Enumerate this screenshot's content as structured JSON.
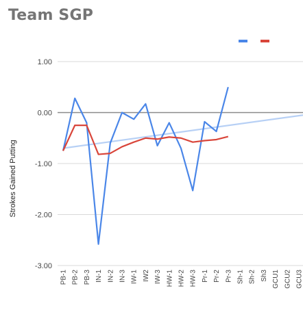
{
  "title": "Team SGP",
  "chart_data": {
    "type": "line",
    "title": "Team SGP",
    "xlabel": "",
    "ylabel": "Strokes Gained Putting",
    "ylim": [
      -3,
      1
    ],
    "yticks": [
      {
        "value": 1,
        "label": "1.00"
      },
      {
        "value": 0,
        "label": "0.00"
      },
      {
        "value": -1,
        "label": "-1.00"
      },
      {
        "value": -2,
        "label": "-2.00"
      },
      {
        "value": -3,
        "label": "-3.00"
      }
    ],
    "grid": true,
    "legend_position": "top-right",
    "categories": [
      "PB-1",
      "PB-2",
      "PB-3",
      "IN-1",
      "IN-2",
      "IN-3",
      "IW-1",
      "IW2",
      "IW-3",
      "HW-1",
      "HW-2",
      "HW-3",
      "Pr-1",
      "Pr-2",
      "Pr-3",
      "Sh-1",
      "Sh-2",
      "Sh3",
      "GCU1",
      "GCU2",
      "GCU3"
    ],
    "series": [
      {
        "color": "#4a86e8",
        "values": [
          -0.75,
          0.28,
          -0.2,
          -2.58,
          -0.6,
          0.0,
          -0.13,
          0.17,
          -0.65,
          -0.2,
          -0.7,
          -1.53,
          -0.18,
          -0.37,
          0.5,
          null,
          null,
          null,
          null,
          null,
          null
        ]
      },
      {
        "color": "#d9453a",
        "values": [
          -0.75,
          -0.25,
          -0.25,
          -0.82,
          -0.8,
          -0.67,
          -0.58,
          -0.5,
          -0.52,
          -0.48,
          -0.5,
          -0.58,
          -0.55,
          -0.53,
          -0.47,
          null,
          null,
          null,
          null,
          null,
          null
        ]
      }
    ],
    "trendline": {
      "color": "#b7d0f5",
      "from": [
        0,
        -0.7
      ],
      "to": [
        21,
        -0.05
      ]
    },
    "zero_line_color": "#8a8a8a",
    "grid_color": "#d9d9d9"
  }
}
